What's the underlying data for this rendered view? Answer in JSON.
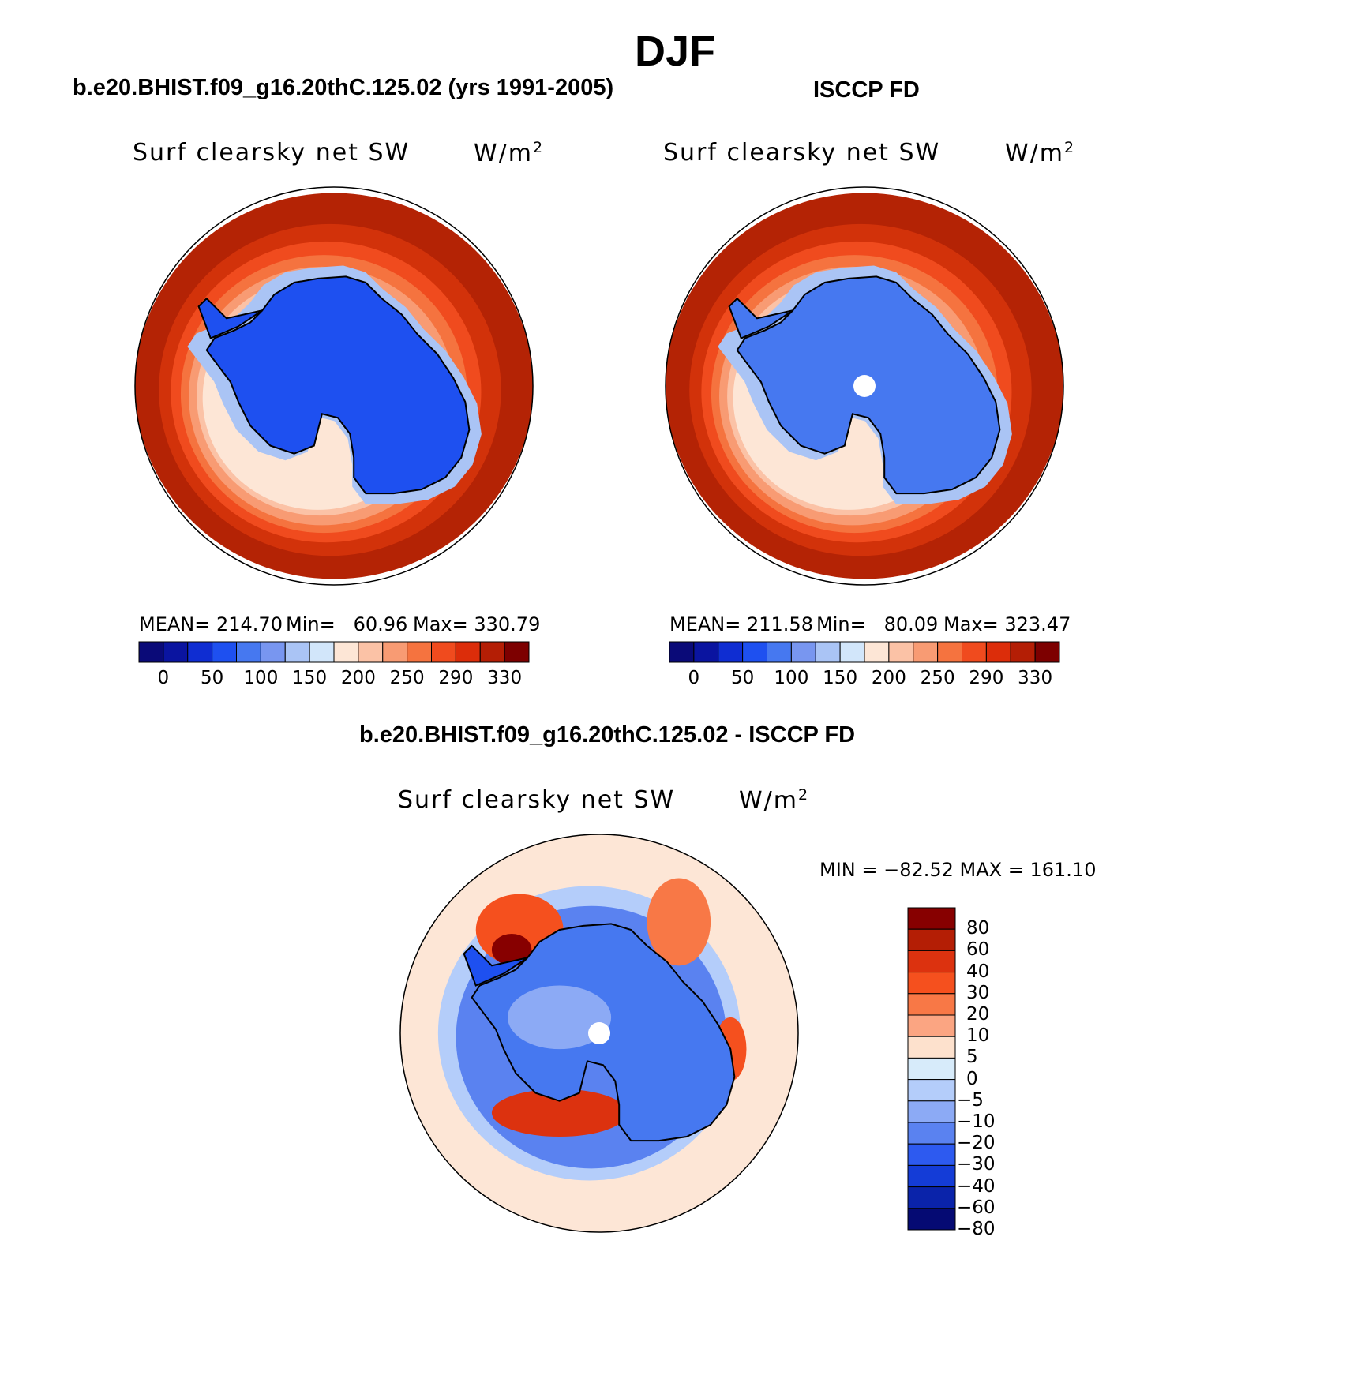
{
  "title": "DJF",
  "panels": [
    {
      "title": "b.e20.BHIST.f09_g16.20thC.125.02 (yrs 1991-2005)",
      "field": "Surf clearsky net SW",
      "units": "W/m",
      "units_sup": "2",
      "stats": {
        "mean": "MEAN= 214.70",
        "min": "Min=   60.96",
        "max": "Max= 330.79"
      },
      "has_pole_hole": false
    },
    {
      "title": "ISCCP FD",
      "field": "Surf clearsky net SW",
      "units": "W/m",
      "units_sup": "2",
      "stats": {
        "mean": "MEAN= 211.58",
        "min": "Min=   80.09",
        "max": "Max= 323.47"
      },
      "has_pole_hole": true
    }
  ],
  "colorbar_top": {
    "colors": [
      "#0a0a78",
      "#0a14a0",
      "#0f2dd2",
      "#1e50f0",
      "#4678f0",
      "#7896f0",
      "#aac4f5",
      "#d2e6fa",
      "#fde6d6",
      "#fbc2a6",
      "#f89b73",
      "#f5733f",
      "#f04b1e",
      "#dc2d0a",
      "#b41e05",
      "#7d0000"
    ],
    "tick_labels": [
      "0",
      "50",
      "100",
      "150",
      "200",
      "250",
      "290",
      "330"
    ]
  },
  "difference": {
    "title": "b.e20.BHIST.f09_g16.20thC.125.02 - ISCCP FD",
    "field": "Surf clearsky net SW",
    "units": "W/m",
    "units_sup": "2",
    "minmax": "MIN = −82.52 MAX = 161.10",
    "colorbar": {
      "colors_top_to_bottom": [
        "#870000",
        "#b41e05",
        "#dc320f",
        "#f5501e",
        "#f87846",
        "#fba582",
        "#fde1cd",
        "#d7ebfa",
        "#b4cdfa",
        "#8caaf5",
        "#5a82f0",
        "#2d5af0",
        "#143cd7",
        "#0a23aa",
        "#050a73"
      ],
      "tick_labels": [
        "80",
        "60",
        "40",
        "30",
        "20",
        "10",
        "5",
        "0",
        "−5",
        "−10",
        "−20",
        "−30",
        "−40",
        "−60",
        "−80"
      ]
    }
  },
  "map_colors": {
    "outer": "#b42305",
    "ring2": "#d2320a",
    "ring3": "#f04b1e",
    "ring4": "#f5733f",
    "ring5": "#f89b73",
    "ring6": "#fbc2a6",
    "ring7": "#fde6d6",
    "ice_model": "#1e50f0",
    "ice_obs": "#4678f0",
    "coast": "#000000",
    "diff_bg": "#fde6d6"
  }
}
